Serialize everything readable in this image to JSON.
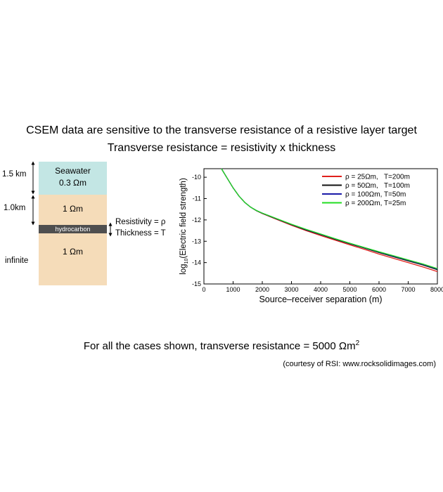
{
  "header": {
    "line1": "CSEM data are sensitive to the transverse resistance of a resistive layer target",
    "line2": "Transverse resistance = resistivity x thickness"
  },
  "model": {
    "seawater_label": "Seawater",
    "seawater_res": "0.3 Ωm",
    "overburden_res": "1 Ωm",
    "hydrocarbon_label": "hydrocarbon",
    "basement_res": "1 Ωm",
    "depth_seawater": "1.5 km",
    "depth_overburden": "1.0km",
    "depth_basement": "infinite",
    "resistivity_label": "Resistivity = ρ",
    "thickness_label": "Thickness = T",
    "colors": {
      "seawater": "#c3e6e4",
      "sediment": "#f5dcb9",
      "hydrocarbon": "#4f4f4f"
    }
  },
  "footer": {
    "statement": "For all the cases shown, transverse resistance = 5000 Ωm",
    "statement_sup": "2",
    "credit": "(courtesy of RSI: www.rocksolidimages.com)"
  },
  "chart_data": {
    "type": "line",
    "xlabel": "Source–receiver separation (m)",
    "ylabel_prefix": "log",
    "ylabel_sub": "10",
    "ylabel_suffix": "(Electric field strength)",
    "xlim": [
      0,
      8000
    ],
    "ylim": [
      -15,
      -9.6
    ],
    "xticks": [
      0,
      1000,
      2000,
      3000,
      4000,
      5000,
      6000,
      7000,
      8000
    ],
    "yticks": [
      -10,
      -11,
      -12,
      -13,
      -14,
      -15
    ],
    "grid": false,
    "legend_position": "top-right",
    "series": [
      {
        "name": "ρ = 25Ωm,   T=200m",
        "color": "#e0201c",
        "x": [
          600,
          800,
          1000,
          1200,
          1400,
          1600,
          1800,
          2000,
          2500,
          3000,
          3500,
          4000,
          4500,
          5000,
          5500,
          6000,
          6500,
          7000,
          7500,
          8000
        ],
        "y": [
          -9.6,
          -10.05,
          -10.5,
          -10.88,
          -11.18,
          -11.4,
          -11.57,
          -11.7,
          -11.98,
          -12.25,
          -12.5,
          -12.73,
          -12.95,
          -13.17,
          -13.38,
          -13.6,
          -13.8,
          -14.0,
          -14.2,
          -14.42
        ]
      },
      {
        "name": "ρ = 50Ωm,   T=100m",
        "color": "#111111",
        "x": [
          600,
          800,
          1000,
          1200,
          1400,
          1600,
          1800,
          2000,
          2500,
          3000,
          3500,
          4000,
          4500,
          5000,
          5500,
          6000,
          6500,
          7000,
          7500,
          8000
        ],
        "y": [
          -9.6,
          -10.05,
          -10.5,
          -10.88,
          -11.18,
          -11.4,
          -11.57,
          -11.69,
          -11.96,
          -12.22,
          -12.47,
          -12.69,
          -12.91,
          -13.12,
          -13.32,
          -13.53,
          -13.73,
          -13.92,
          -14.11,
          -14.33
        ]
      },
      {
        "name": "ρ = 100Ωm, T=50m",
        "color": "#1a1aa8",
        "x": [
          600,
          800,
          1000,
          1200,
          1400,
          1600,
          1800,
          2000,
          2500,
          3000,
          3500,
          4000,
          4500,
          5000,
          5500,
          6000,
          6500,
          7000,
          7500,
          8000
        ],
        "y": [
          -9.6,
          -10.05,
          -10.5,
          -10.88,
          -11.18,
          -11.4,
          -11.56,
          -11.68,
          -11.95,
          -12.21,
          -12.45,
          -12.67,
          -12.89,
          -13.1,
          -13.3,
          -13.5,
          -13.7,
          -13.89,
          -14.08,
          -14.3
        ]
      },
      {
        "name": "ρ = 200Ωm, T=25m",
        "color": "#22dd22",
        "x": [
          600,
          800,
          1000,
          1200,
          1400,
          1600,
          1800,
          2000,
          2500,
          3000,
          3500,
          4000,
          4500,
          5000,
          5500,
          6000,
          6500,
          7000,
          7500,
          8000
        ],
        "y": [
          -9.6,
          -10.05,
          -10.5,
          -10.88,
          -11.18,
          -11.4,
          -11.56,
          -11.68,
          -11.94,
          -12.2,
          -12.44,
          -12.66,
          -12.88,
          -13.09,
          -13.29,
          -13.49,
          -13.68,
          -13.87,
          -14.06,
          -14.28
        ]
      }
    ]
  }
}
